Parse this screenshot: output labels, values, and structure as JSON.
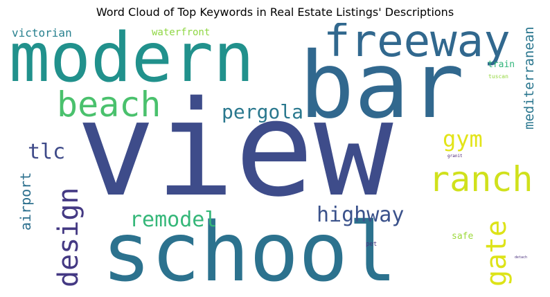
{
  "title": "Word Cloud of Top Keywords in Real Estate Listings' Descriptions",
  "words": [
    {
      "text": "view",
      "color": "#3e4c8a"
    },
    {
      "text": "school",
      "color": "#2c728e"
    },
    {
      "text": "bar",
      "color": "#31688e"
    },
    {
      "text": "modern",
      "color": "#21918c"
    },
    {
      "text": "freeway",
      "color": "#31688e"
    },
    {
      "text": "beach",
      "color": "#4ac16d"
    },
    {
      "text": "ranch",
      "color": "#d0e11c"
    },
    {
      "text": "design",
      "color": "#443983"
    },
    {
      "text": "gate",
      "color": "#dde318"
    },
    {
      "text": "remodel",
      "color": "#35b779"
    },
    {
      "text": "highway",
      "color": "#3b528b"
    },
    {
      "text": "pergola",
      "color": "#2a788e"
    },
    {
      "text": "tlc",
      "color": "#3e4a89"
    },
    {
      "text": "gym",
      "color": "#e2e418"
    },
    {
      "text": "mediterranean",
      "color": "#2a768e"
    },
    {
      "text": "airport",
      "color": "#2d708e"
    },
    {
      "text": "victorian",
      "color": "#27808e"
    },
    {
      "text": "waterfront",
      "color": "#8fd744"
    },
    {
      "text": "train",
      "color": "#31b57b"
    },
    {
      "text": "safe",
      "color": "#9dd93b"
    },
    {
      "text": "tuscan",
      "color": "#95d840"
    },
    {
      "text": "granit",
      "color": "#482173"
    },
    {
      "text": "pet",
      "color": "#46337f"
    },
    {
      "text": "detach",
      "color": "#472d7b"
    }
  ]
}
